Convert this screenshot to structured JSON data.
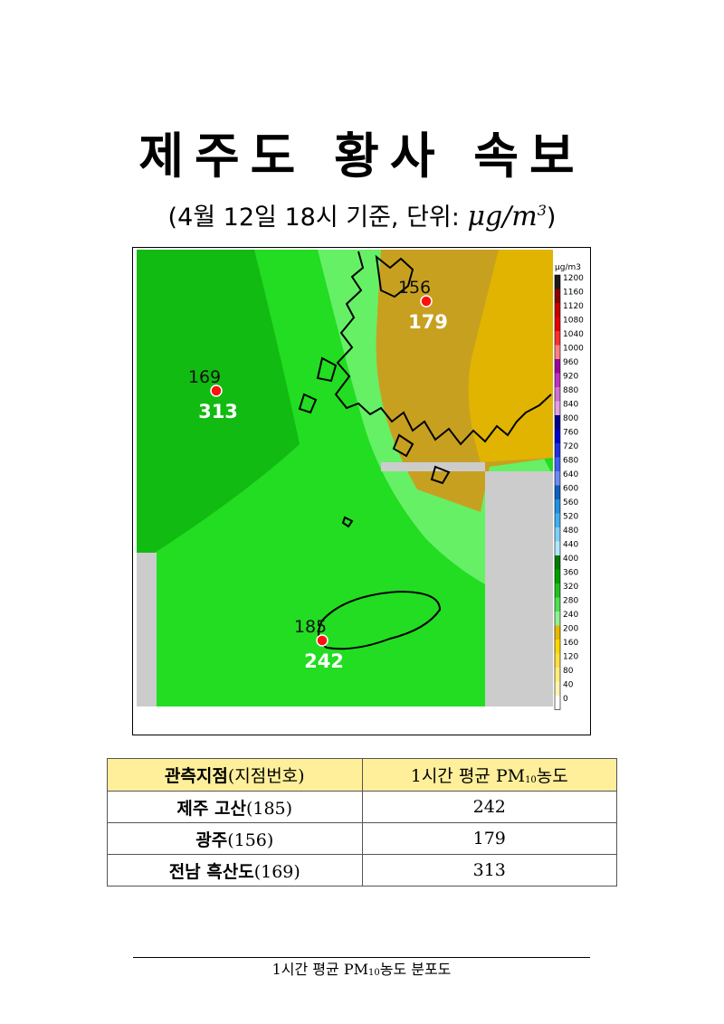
{
  "title": "제주도 황사 속보",
  "subtitle": {
    "prefix": "(4월 12일 18시 기준, 단위: ",
    "unit_main": "μg/m",
    "unit_exp": "3",
    "suffix": ")"
  },
  "map": {
    "caption_prefix": "1시간 평균 PM",
    "caption_sub": "10",
    "caption_suffix": "농도 분포도",
    "legend_unit": "μg/m3",
    "legend_ticks": [
      "1200",
      "1160",
      "1120",
      "1080",
      "1040",
      "1000",
      "960",
      "920",
      "880",
      "840",
      "800",
      "760",
      "720",
      "680",
      "640",
      "600",
      "560",
      "520",
      "480",
      "440",
      "400",
      "360",
      "320",
      "280",
      "240",
      "200",
      "160",
      "120",
      "80",
      "40",
      "0"
    ],
    "legend_colors": [
      "#1a1a1a",
      "#8b0000",
      "#c80000",
      "#e60000",
      "#ff3030",
      "#ff8080",
      "#a000a0",
      "#c030c0",
      "#d070d0",
      "#e0a0e0",
      "#00008b",
      "#0000cd",
      "#2030e0",
      "#4060f0",
      "#6a8cf0",
      "#1060c0",
      "#2090e0",
      "#40b0f0",
      "#80d0f8",
      "#b0e8ff",
      "#007a00",
      "#00a000",
      "#20c020",
      "#50e050",
      "#90f090",
      "#e6b800",
      "#ffd700",
      "#ffe040",
      "#ffec80",
      "#fff4b0",
      "#ffffff"
    ],
    "stations": [
      {
        "code": "156",
        "value": "179"
      },
      {
        "code": "169",
        "value": "313"
      },
      {
        "code": "185",
        "value": "242"
      }
    ]
  },
  "table": {
    "headers": {
      "col1_main": "관측지점",
      "col1_paren": "(지점번호)",
      "col2_prefix": "1시간 평균 PM",
      "col2_sub": "10",
      "col2_suffix": "농도"
    },
    "rows": [
      {
        "name": "제주 고산",
        "code": "(185)",
        "value": "242"
      },
      {
        "name": "광주",
        "code": "(156)",
        "value": "179"
      },
      {
        "name": "전남 흑산도",
        "code": "(169)",
        "value": "313"
      }
    ]
  }
}
